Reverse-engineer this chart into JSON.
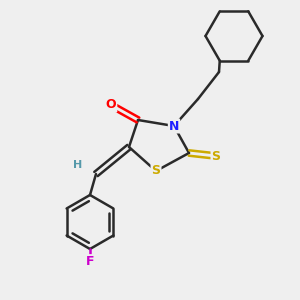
{
  "bg_color": "#efefef",
  "bond_color": "#2a2a2a",
  "atom_colors": {
    "O": "#ff0000",
    "N": "#2020ff",
    "S": "#ccaa00",
    "F": "#cc00cc",
    "H": "#5599aa",
    "C": "#2a2a2a"
  },
  "bond_width": 1.8,
  "fig_width": 3.0,
  "fig_height": 3.0,
  "dpi": 100
}
